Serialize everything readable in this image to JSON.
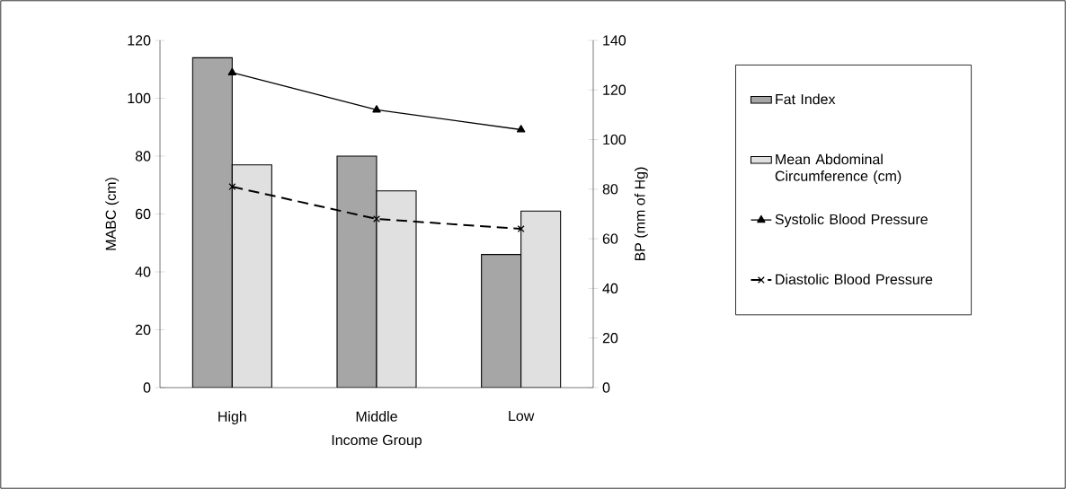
{
  "chart_data": {
    "type": "bar",
    "xlabel": "Income Group",
    "ylabel": "MABC (cm)",
    "y2label": "BP (mm of Hg)",
    "categories": [
      "High",
      "Middle",
      "Low"
    ],
    "series": [
      {
        "name": "Fat Index",
        "color": "#a6a6a6",
        "values": [
          114,
          80,
          46
        ]
      },
      {
        "name": "Mean Abdominal Circumference (cm)",
        "color": "#e0e0e0",
        "values": [
          77,
          68,
          61
        ]
      },
      {
        "name": "Systolic Blood Pressure",
        "type": "line",
        "axis": "y2",
        "color": "#000000",
        "marker": "triangle",
        "line_style": "solid",
        "values": [
          127,
          112,
          104
        ]
      },
      {
        "name": "Diastolic Blood Pressure",
        "type": "line",
        "axis": "y2",
        "color": "#000000",
        "marker": "cross",
        "line_style": "dashed",
        "values": [
          81,
          68,
          64
        ]
      }
    ],
    "ylim": [
      0,
      120
    ],
    "yticks": [
      0,
      20,
      40,
      60,
      80,
      100,
      120
    ],
    "y2lim": [
      0,
      140
    ],
    "y2ticks": [
      0,
      20,
      40,
      60,
      80,
      100,
      120,
      140
    ],
    "grid": false,
    "legend": "right"
  }
}
